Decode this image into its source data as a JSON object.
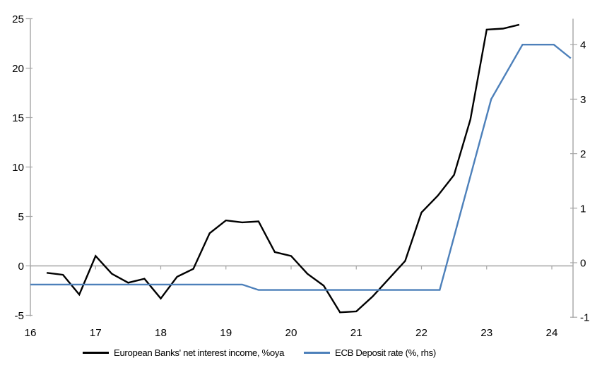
{
  "chart_data": {
    "type": "line",
    "title": "",
    "xlabel": "",
    "ylabel_left": "",
    "ylabel_right": "",
    "x_axis": {
      "ticks": [
        16,
        17,
        18,
        19,
        20,
        21,
        22,
        23,
        24
      ],
      "range": [
        16,
        24.33
      ],
      "grid": false
    },
    "left_axis": {
      "ticks": [
        25,
        20,
        15,
        10,
        5,
        0,
        -5
      ],
      "range": [
        -5,
        25
      ]
    },
    "right_axis": {
      "ticks": [
        4,
        3,
        2,
        1,
        0,
        -1
      ],
      "range": [
        -1,
        4.47
      ]
    },
    "zero_line": true,
    "legend_position": "bottom",
    "series": [
      {
        "name": "European Banks' net interest income, %oya",
        "axis": "left",
        "color": "#000000",
        "x": [
          16.25,
          16.5,
          16.75,
          17.0,
          17.25,
          17.5,
          17.75,
          18.0,
          18.25,
          18.5,
          18.75,
          19.0,
          19.25,
          19.5,
          19.75,
          20.0,
          20.25,
          20.5,
          20.75,
          21.0,
          21.25,
          21.5,
          21.75,
          22.0,
          22.25,
          22.5,
          22.75,
          23.0,
          23.25,
          23.5
        ],
        "values": [
          -0.7,
          -0.9,
          -2.9,
          1.0,
          -0.8,
          -1.7,
          -1.3,
          -3.3,
          -1.1,
          -0.3,
          3.3,
          4.6,
          4.4,
          4.5,
          1.4,
          1.0,
          -0.8,
          -2.0,
          -4.7,
          -4.6,
          -3.1,
          -1.3,
          0.5,
          5.4,
          7.1,
          9.2,
          14.8,
          23.9,
          24.0,
          24.4
        ]
      },
      {
        "name": "ECB Deposit rate (%, rhs)",
        "axis": "right",
        "color": "#4d80ba",
        "x": [
          16.0,
          19.25,
          19.5,
          22.28,
          23.07,
          23.55,
          24.03,
          24.29
        ],
        "values": [
          -0.4,
          -0.4,
          -0.5,
          -0.5,
          3.0,
          4.0,
          4.0,
          3.75
        ]
      }
    ],
    "colors": {
      "axis": "#a6a6a6",
      "text": "#000000",
      "background": "#ffffff"
    }
  }
}
